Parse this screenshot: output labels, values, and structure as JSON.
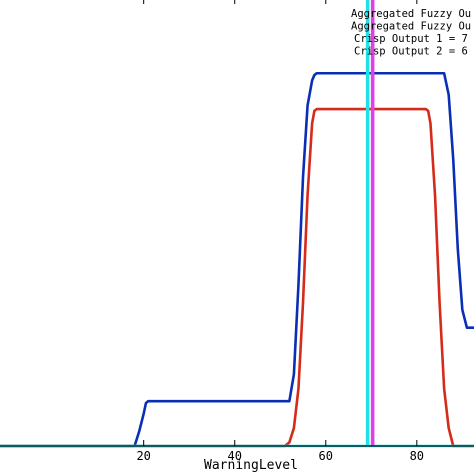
{
  "chart_data": {
    "type": "line",
    "title": "",
    "xlabel": "WarningLevel",
    "ylabel": "",
    "xlim": [
      -12,
      93
    ],
    "ylim": [
      0,
      1.25
    ],
    "xticks": [
      20,
      40,
      60,
      80
    ],
    "xtick_labels": [
      "20",
      "40",
      "60",
      "80"
    ],
    "grid": false,
    "legend": {
      "placement": "top-right",
      "entries": [
        "Aggregated Fuzzy Ou",
        "Aggregated Fuzzy Ou",
        "Crisp Output 1 = 7",
        "Crisp Output 2 = 6"
      ]
    },
    "series": [
      {
        "color": "#0a2fb5",
        "x": [
          -12,
          18,
          19,
          20,
          20.5,
          21,
          52,
          53,
          54,
          55,
          56,
          57,
          57.5,
          58,
          86,
          87,
          88,
          89,
          90,
          91,
          93
        ],
        "y": [
          0,
          0,
          0.04,
          0.09,
          0.12,
          0.125,
          0.125,
          0.2,
          0.45,
          0.75,
          0.95,
          1.02,
          1.035,
          1.04,
          1.04,
          0.98,
          0.8,
          0.55,
          0.38,
          0.33,
          0.33
        ]
      },
      {
        "color": "#d42b1a",
        "x": [
          -12,
          51,
          52,
          53,
          54,
          55,
          56,
          57,
          57.5,
          58,
          82,
          82.5,
          83,
          84,
          85,
          86,
          87,
          88,
          93
        ],
        "y": [
          0,
          0,
          0.01,
          0.05,
          0.16,
          0.4,
          0.7,
          0.9,
          0.935,
          0.94,
          0.94,
          0.935,
          0.9,
          0.7,
          0.4,
          0.16,
          0.05,
          0,
          0
        ]
      },
      {
        "color": "#22e0e8",
        "x": [
          -12,
          93
        ],
        "y": [
          0,
          0
        ]
      }
    ],
    "vlines": [
      {
        "x": 69.2,
        "color": "#22e0e8"
      },
      {
        "x": 70.3,
        "color": "#e040e8"
      }
    ]
  }
}
